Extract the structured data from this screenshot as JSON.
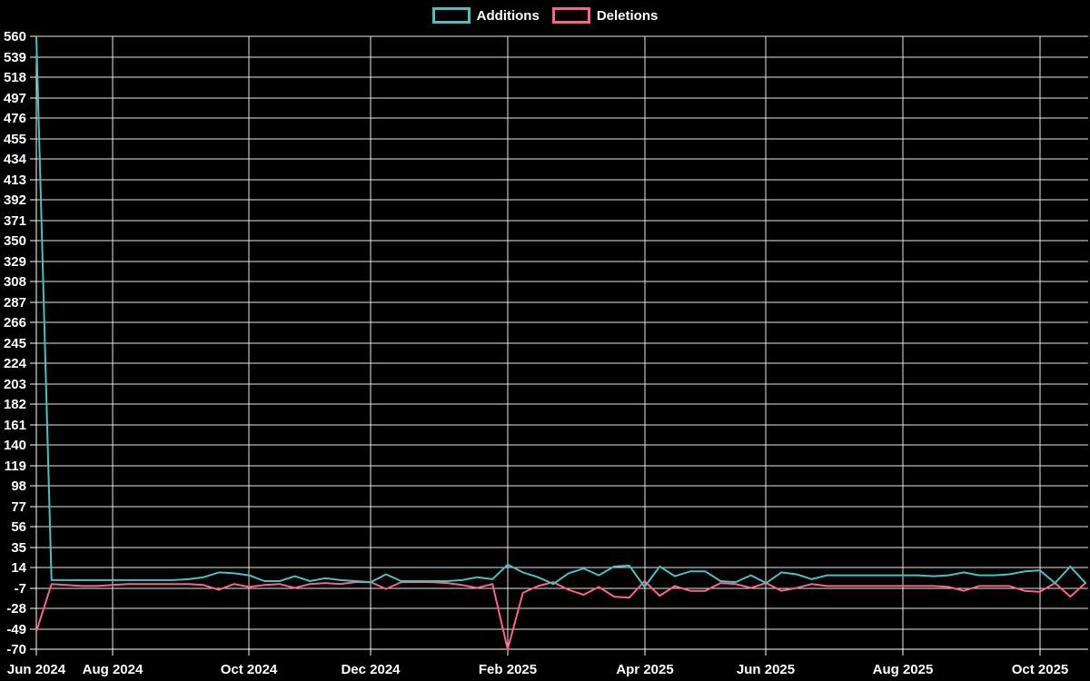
{
  "page": {
    "background_color": "#000000",
    "text_color": "#ffffff",
    "grid_color": "#ffffff"
  },
  "legend": {
    "items": [
      {
        "label": "Additions",
        "color": "#4bc0c0"
      },
      {
        "label": "Deletions",
        "color": "#ff6384"
      }
    ]
  },
  "chart_data": {
    "type": "line",
    "title": "",
    "legend_position": "top-center",
    "grid": true,
    "y_min": -70,
    "y_max": 560,
    "y_tick_step": 21,
    "y_tick_labels": [
      "560",
      "539",
      "518",
      "497",
      "476",
      "455",
      "434",
      "413",
      "392",
      "371",
      "350",
      "329",
      "308",
      "287",
      "266",
      "245",
      "224",
      "203",
      "182",
      "161",
      "140",
      "119",
      "98",
      "77",
      "56",
      "35",
      "14",
      "-7",
      "-28",
      "-49",
      "-70"
    ],
    "x_tick_labels": [
      "Jun 2024",
      "Aug 2024",
      "Oct 2024",
      "Dec 2024",
      "Feb 2025",
      "Apr 2025",
      "Jun 2025",
      "Aug 2025",
      "Oct 2025"
    ],
    "x_tick_indices": [
      0,
      5,
      14,
      22,
      31,
      40,
      48,
      57,
      66
    ],
    "n_points": 70,
    "series": [
      {
        "name": "Additions",
        "color": "#4bc0c0",
        "values": [
          560,
          1,
          1,
          1,
          1,
          1,
          1,
          1,
          1,
          1,
          2,
          4,
          9,
          8,
          6,
          0,
          0,
          5,
          0,
          3,
          1,
          0,
          -1,
          7,
          0,
          0,
          0,
          0,
          1,
          4,
          2,
          17,
          9,
          4,
          -3,
          8,
          13,
          6,
          15,
          16,
          -6,
          15,
          5,
          10,
          10,
          0,
          -1,
          6,
          -2,
          9,
          7,
          2,
          6,
          6,
          6,
          6,
          6,
          6,
          6,
          5,
          6,
          9,
          6,
          6,
          7,
          10,
          11,
          -2,
          15,
          -2
        ]
      },
      {
        "name": "Deletions",
        "color": "#ff6384",
        "values": [
          -52,
          -3,
          -4,
          -5,
          -5,
          -4,
          -3,
          -3,
          -3,
          -3,
          -3,
          -4,
          -9,
          -3,
          -6,
          -4,
          -3,
          -7,
          -3,
          -2,
          -3,
          -1,
          -1,
          -8,
          -1,
          -1,
          -1,
          -2,
          -4,
          -7,
          -3,
          -70,
          -12,
          -5,
          -1,
          -9,
          -14,
          -6,
          -16,
          -17,
          0,
          -15,
          -5,
          -10,
          -10,
          -2,
          -3,
          -7,
          -2,
          -10,
          -7,
          -3,
          -5,
          -5,
          -5,
          -5,
          -5,
          -5,
          -5,
          -5,
          -6,
          -10,
          -5,
          -5,
          -5,
          -10,
          -11,
          -2,
          -16,
          -2
        ]
      }
    ]
  }
}
